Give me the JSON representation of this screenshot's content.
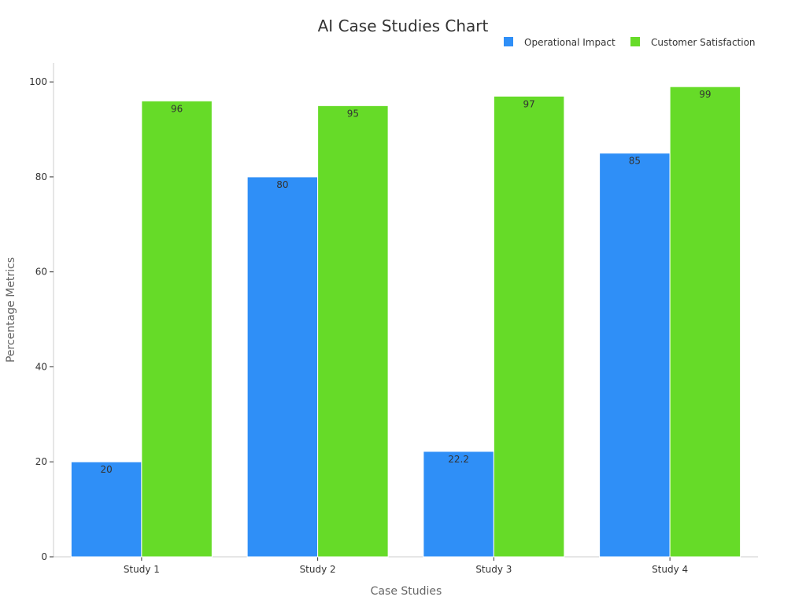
{
  "chart_data": {
    "type": "bar",
    "title": "AI Case Studies Chart",
    "xlabel": "Case Studies",
    "ylabel": "Percentage Metrics",
    "categories": [
      "Study 1",
      "Study 2",
      "Study 3",
      "Study 4"
    ],
    "series": [
      {
        "name": "Operational Impact",
        "color": "#2f8ff7",
        "values": [
          20,
          80,
          22.2,
          85
        ],
        "labels": [
          "20",
          "80",
          "22.2",
          "85"
        ]
      },
      {
        "name": "Customer Satisfaction",
        "color": "#66db28",
        "values": [
          96,
          95,
          97,
          99
        ],
        "labels": [
          "96",
          "95",
          "97",
          "99"
        ]
      }
    ],
    "ylim": [
      0,
      104
    ],
    "yticks": [
      0,
      20,
      40,
      60,
      80,
      100
    ],
    "ytick_labels": [
      "0",
      "20",
      "40",
      "60",
      "80",
      "100"
    ],
    "grid": false,
    "legend_position": "top-right"
  }
}
